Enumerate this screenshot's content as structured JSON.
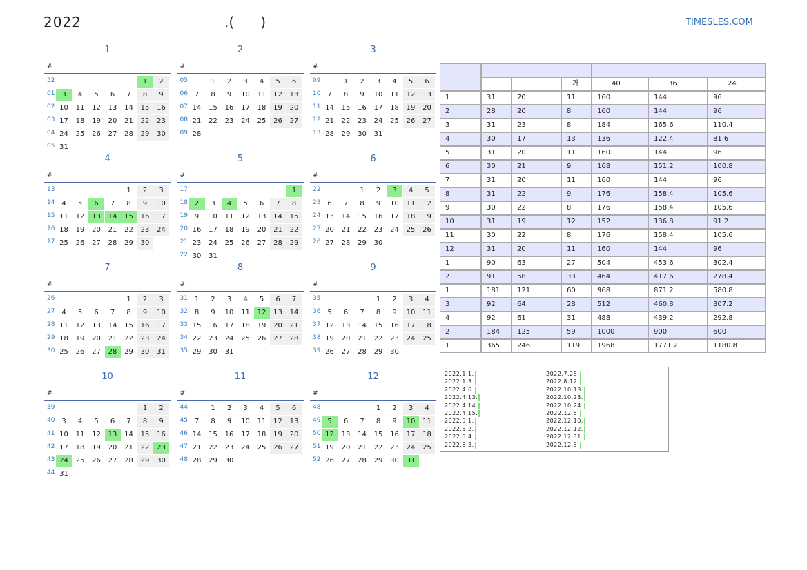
{
  "header": {
    "title": "2022",
    "subtitle": ".(      )",
    "site": "TIMESLES.COM"
  },
  "calendar": {
    "week_header": "#",
    "months": [
      {
        "title": "1",
        "highlight": [
          1,
          3
        ],
        "weeks": [
          [
            "52",
            null,
            null,
            null,
            null,
            null,
            1,
            2
          ],
          [
            "01",
            3,
            4,
            5,
            6,
            7,
            8,
            9
          ],
          [
            "02",
            10,
            11,
            12,
            13,
            14,
            15,
            16
          ],
          [
            "03",
            17,
            18,
            19,
            20,
            21,
            22,
            23
          ],
          [
            "04",
            24,
            25,
            26,
            27,
            28,
            29,
            30
          ],
          [
            "05",
            31,
            null,
            null,
            null,
            null,
            null,
            null
          ]
        ]
      },
      {
        "title": "2",
        "highlight": [],
        "weeks": [
          [
            "05",
            null,
            1,
            2,
            3,
            4,
            5,
            6
          ],
          [
            "06",
            7,
            8,
            9,
            10,
            11,
            12,
            13
          ],
          [
            "07",
            14,
            15,
            16,
            17,
            18,
            19,
            20
          ],
          [
            "08",
            21,
            22,
            23,
            24,
            25,
            26,
            27
          ],
          [
            "09",
            28,
            null,
            null,
            null,
            null,
            null,
            null
          ]
        ]
      },
      {
        "title": "3",
        "highlight": [],
        "weeks": [
          [
            "09",
            null,
            1,
            2,
            3,
            4,
            5,
            6
          ],
          [
            "10",
            7,
            8,
            9,
            10,
            11,
            12,
            13
          ],
          [
            "11",
            14,
            15,
            16,
            17,
            18,
            19,
            20
          ],
          [
            "12",
            21,
            22,
            23,
            24,
            25,
            26,
            27
          ],
          [
            "13",
            28,
            29,
            30,
            31,
            null,
            null,
            null
          ]
        ]
      },
      {
        "title": "4",
        "highlight": [
          6,
          13,
          14,
          15
        ],
        "weeks": [
          [
            "13",
            null,
            null,
            null,
            null,
            1,
            2,
            3
          ],
          [
            "14",
            4,
            5,
            6,
            7,
            8,
            9,
            10
          ],
          [
            "15",
            11,
            12,
            13,
            14,
            15,
            16,
            17
          ],
          [
            "16",
            18,
            19,
            20,
            21,
            22,
            23,
            24
          ],
          [
            "17",
            25,
            26,
            27,
            28,
            29,
            30,
            null
          ]
        ]
      },
      {
        "title": "5",
        "highlight": [
          1,
          2,
          4
        ],
        "weeks": [
          [
            "17",
            null,
            null,
            null,
            null,
            null,
            null,
            1
          ],
          [
            "18",
            2,
            3,
            4,
            5,
            6,
            7,
            8
          ],
          [
            "19",
            9,
            10,
            11,
            12,
            13,
            14,
            15
          ],
          [
            "20",
            16,
            17,
            18,
            19,
            20,
            21,
            22
          ],
          [
            "21",
            23,
            24,
            25,
            26,
            27,
            28,
            29
          ],
          [
            "22",
            30,
            31,
            null,
            null,
            null,
            null,
            null
          ]
        ]
      },
      {
        "title": "6",
        "highlight": [
          3
        ],
        "weeks": [
          [
            "22",
            null,
            null,
            1,
            2,
            3,
            4,
            5
          ],
          [
            "23",
            6,
            7,
            8,
            9,
            10,
            11,
            12
          ],
          [
            "24",
            13,
            14,
            15,
            16,
            17,
            18,
            19
          ],
          [
            "25",
            20,
            21,
            22,
            23,
            24,
            25,
            26
          ],
          [
            "26",
            27,
            28,
            29,
            30,
            null,
            null,
            null
          ]
        ]
      },
      {
        "title": "7",
        "highlight": [
          28
        ],
        "weeks": [
          [
            "26",
            null,
            null,
            null,
            null,
            1,
            2,
            3
          ],
          [
            "27",
            4,
            5,
            6,
            7,
            8,
            9,
            10
          ],
          [
            "28",
            11,
            12,
            13,
            14,
            15,
            16,
            17
          ],
          [
            "29",
            18,
            19,
            20,
            21,
            22,
            23,
            24
          ],
          [
            "30",
            25,
            26,
            27,
            28,
            29,
            30,
            31
          ]
        ]
      },
      {
        "title": "8",
        "highlight": [
          12
        ],
        "weeks": [
          [
            "31",
            1,
            2,
            3,
            4,
            5,
            6,
            7
          ],
          [
            "32",
            8,
            9,
            10,
            11,
            12,
            13,
            14
          ],
          [
            "33",
            15,
            16,
            17,
            18,
            19,
            20,
            21
          ],
          [
            "34",
            22,
            23,
            24,
            25,
            26,
            27,
            28
          ],
          [
            "35",
            29,
            30,
            31,
            null,
            null,
            null,
            null
          ]
        ]
      },
      {
        "title": "9",
        "highlight": [],
        "weeks": [
          [
            "35",
            null,
            null,
            null,
            1,
            2,
            3,
            4
          ],
          [
            "36",
            5,
            6,
            7,
            8,
            9,
            10,
            11
          ],
          [
            "37",
            12,
            13,
            14,
            15,
            16,
            17,
            18
          ],
          [
            "38",
            19,
            20,
            21,
            22,
            23,
            24,
            25
          ],
          [
            "39",
            26,
            27,
            28,
            29,
            30,
            null,
            null
          ]
        ]
      },
      {
        "title": "10",
        "highlight": [
          13,
          23,
          24
        ],
        "weeks": [
          [
            "39",
            null,
            null,
            null,
            null,
            null,
            1,
            2
          ],
          [
            "40",
            3,
            4,
            5,
            6,
            7,
            8,
            9
          ],
          [
            "41",
            10,
            11,
            12,
            13,
            14,
            15,
            16
          ],
          [
            "42",
            17,
            18,
            19,
            20,
            21,
            22,
            23
          ],
          [
            "43",
            24,
            25,
            26,
            27,
            28,
            29,
            30
          ],
          [
            "44",
            31,
            null,
            null,
            null,
            null,
            null,
            null
          ]
        ]
      },
      {
        "title": "11",
        "highlight": [],
        "weeks": [
          [
            "44",
            null,
            1,
            2,
            3,
            4,
            5,
            6
          ],
          [
            "45",
            7,
            8,
            9,
            10,
            11,
            12,
            13
          ],
          [
            "46",
            14,
            15,
            16,
            17,
            18,
            19,
            20
          ],
          [
            "47",
            21,
            22,
            23,
            24,
            25,
            26,
            27
          ],
          [
            "48",
            28,
            29,
            30,
            null,
            null,
            null,
            null
          ]
        ]
      },
      {
        "title": "12",
        "highlight": [
          5,
          10,
          12,
          31
        ],
        "weeks": [
          [
            "48",
            null,
            null,
            null,
            1,
            2,
            3,
            4
          ],
          [
            "49",
            5,
            6,
            7,
            8,
            9,
            10,
            11
          ],
          [
            "50",
            12,
            13,
            14,
            15,
            16,
            17,
            18
          ],
          [
            "51",
            19,
            20,
            21,
            22,
            23,
            24,
            25
          ],
          [
            "52",
            26,
            27,
            28,
            29,
            30,
            31,
            null
          ]
        ]
      }
    ]
  },
  "table": {
    "header": [
      "가",
      "40",
      "36",
      "24"
    ],
    "rows": [
      [
        "1",
        "31",
        "20",
        "11",
        "160",
        "144",
        "96"
      ],
      [
        "2",
        "28",
        "20",
        "8",
        "160",
        "144",
        "96"
      ],
      [
        "3",
        "31",
        "23",
        "8",
        "184",
        "165.6",
        "110.4"
      ],
      [
        "4",
        "30",
        "17",
        "13",
        "136",
        "122.4",
        "81.6"
      ],
      [
        "5",
        "31",
        "20",
        "11",
        "160",
        "144",
        "96"
      ],
      [
        "6",
        "30",
        "21",
        "9",
        "168",
        "151.2",
        "100.8"
      ],
      [
        "7",
        "31",
        "20",
        "11",
        "160",
        "144",
        "96"
      ],
      [
        "8",
        "31",
        "22",
        "9",
        "176",
        "158.4",
        "105.6"
      ],
      [
        "9",
        "30",
        "22",
        "8",
        "176",
        "158.4",
        "105.6"
      ],
      [
        "10",
        "31",
        "19",
        "12",
        "152",
        "136.8",
        "91.2"
      ],
      [
        "11",
        "30",
        "22",
        "8",
        "176",
        "158.4",
        "105.6"
      ],
      [
        "12",
        "31",
        "20",
        "11",
        "160",
        "144",
        "96"
      ],
      [
        "1",
        "90",
        "63",
        "27",
        "504",
        "453.6",
        "302.4"
      ],
      [
        "2",
        "91",
        "58",
        "33",
        "464",
        "417.6",
        "278.4"
      ],
      [
        "1",
        "181",
        "121",
        "60",
        "968",
        "871.2",
        "580.8"
      ],
      [
        "3",
        "92",
        "64",
        "28",
        "512",
        "460.8",
        "307.2"
      ],
      [
        "4",
        "92",
        "61",
        "31",
        "488",
        "439.2",
        "292.8"
      ],
      [
        "2",
        "184",
        "125",
        "59",
        "1000",
        "900",
        "600"
      ],
      [
        "1",
        "365",
        "246",
        "119",
        "1968",
        "1771.2",
        "1180.8"
      ]
    ]
  },
  "holidays": [
    "2022.1.1.",
    "2022.1.3.",
    "2022.4.6.",
    "2022.4.13.",
    "2022.4.14.",
    "2022.4.15.",
    "2022.5.1.",
    "2022.5.2.",
    "2022.5.4.",
    "2022.6.3.",
    "2022.7.28.",
    "2022.8.12.",
    "2022.10.13.",
    "2022.10.23.",
    "2022.10.24.",
    "2022.12.5.",
    "2022.12.10.",
    "2022.12.12.",
    "2022.12.31.",
    "2022.12.5."
  ]
}
